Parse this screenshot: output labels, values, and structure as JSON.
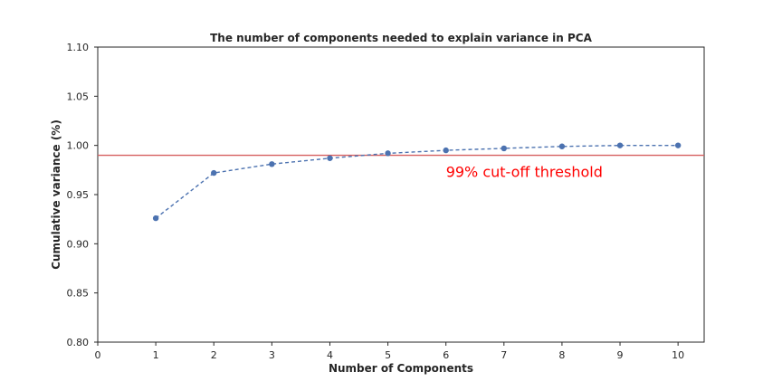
{
  "chart_data": {
    "type": "line",
    "title": "The number of components needed to explain variance in PCA",
    "xlabel": "Number of Components",
    "ylabel": "Cumulative variance (%)",
    "xlim": [
      0,
      10.45
    ],
    "ylim": [
      0.8,
      1.1
    ],
    "xticks": [
      "0",
      "1",
      "2",
      "3",
      "4",
      "5",
      "6",
      "7",
      "8",
      "9",
      "10"
    ],
    "yticks": [
      "0.80",
      "0.85",
      "0.90",
      "0.95",
      "1.00",
      "1.05",
      "1.10"
    ],
    "grid": false,
    "series": [
      {
        "x": [
          1,
          2,
          3,
          4,
          5,
          6,
          7,
          8,
          9,
          10
        ],
        "values": [
          0.926,
          0.972,
          0.981,
          0.987,
          0.992,
          0.995,
          0.997,
          0.999,
          1.0,
          1.0
        ],
        "color": "#4c72b0",
        "style": "dashed",
        "marker": "circle"
      }
    ],
    "threshold": {
      "value": 0.99,
      "color": "#d65f5f",
      "label": "99% cut-off threshold",
      "label_color": "#ff0000",
      "label_x": 6,
      "label_y": 0.97
    }
  }
}
